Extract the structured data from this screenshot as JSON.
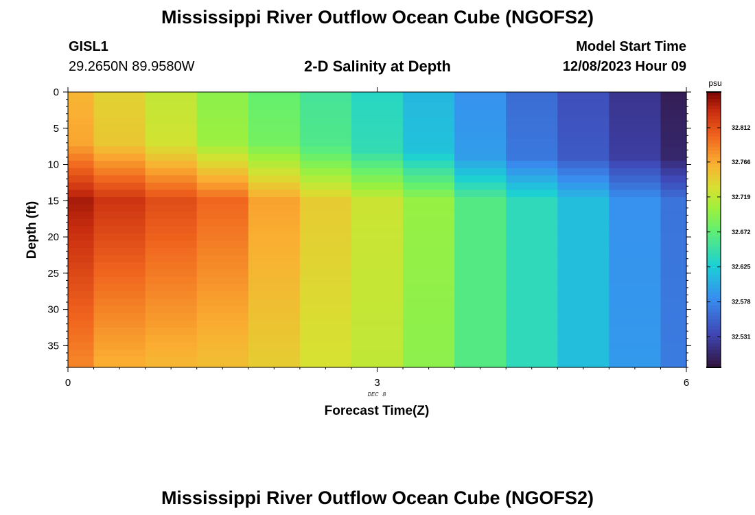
{
  "header": {
    "title": "Mississippi River Outflow Ocean Cube (NGOFS2)",
    "station_id": "GISL1",
    "station_coords": "29.2650N  89.9580W",
    "plot_title": "2-D Salinity at Depth",
    "model_start_label": "Model Start Time",
    "model_start_value": "12/08/2023 Hour 09"
  },
  "footer": {
    "title": "Mississippi River Outflow Ocean Cube (NGOFS2)"
  },
  "chart_data": {
    "type": "heatmap",
    "title": "2-D Salinity at Depth",
    "xlabel": "Forecast Time(Z)",
    "ylabel": "Depth (ft)",
    "x_date_label": "DEC 8",
    "xlim": [
      0,
      6
    ],
    "ylim": [
      38,
      0
    ],
    "x_ticks": [
      0,
      3,
      6
    ],
    "y_ticks": [
      0,
      5,
      10,
      15,
      20,
      25,
      30,
      35
    ],
    "colorbar": {
      "unit": "psu",
      "ticks": [
        "32.812",
        "32.766",
        "32.719",
        "32.672",
        "32.625",
        "32.578",
        "32.531"
      ],
      "tick_values": [
        32.812,
        32.766,
        32.719,
        32.672,
        32.625,
        32.578,
        32.531
      ],
      "range": [
        32.49,
        32.86
      ]
    },
    "column_times": [
      0,
      0.5,
      1.0,
      1.5,
      2.0,
      2.5,
      3.0,
      3.5,
      4.0,
      4.5,
      5.0,
      5.5,
      6.0
    ],
    "depth_levels": [
      0,
      1,
      2,
      3,
      4,
      5,
      6,
      7,
      8,
      9,
      10,
      11,
      12,
      13,
      14,
      15,
      16,
      17,
      18,
      19,
      20,
      21,
      22,
      23,
      24,
      25,
      26,
      27,
      28,
      29,
      30,
      31,
      32,
      33,
      34,
      35,
      36,
      37
    ],
    "surface_values": [
      32.76,
      32.74,
      32.72,
      32.695,
      32.675,
      32.655,
      32.635,
      32.61,
      32.585,
      32.56,
      32.54,
      32.52,
      32.5
    ],
    "mid_values": [
      32.845,
      32.83,
      32.815,
      32.8,
      32.77,
      32.745,
      32.725,
      32.7,
      32.665,
      32.64,
      32.615,
      32.585,
      32.565
    ],
    "deep_values": [
      32.785,
      32.765,
      32.76,
      32.755,
      32.745,
      32.73,
      32.72,
      32.695,
      32.665,
      32.64,
      32.615,
      32.59,
      32.57
    ],
    "halocline_depth": [
      10,
      10,
      10,
      10,
      10,
      10.5,
      11,
      11,
      12,
      12,
      12,
      12,
      12
    ],
    "peak_depth": 15
  }
}
